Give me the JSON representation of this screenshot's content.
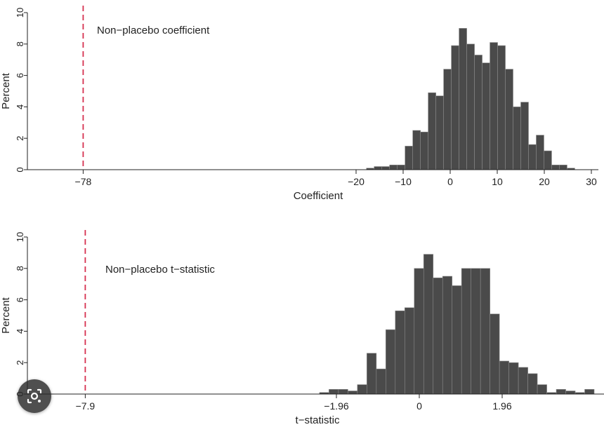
{
  "colors": {
    "bar": "#4a4a4a",
    "bar_stroke": "#8a8a8a",
    "reference_line": "#d6304f",
    "axis": "#222222"
  },
  "icons": {
    "lens_button": "google-lens-icon"
  },
  "chart_data": [
    {
      "type": "bar",
      "subtype": "histogram",
      "title": "",
      "xlabel": "Coefficient",
      "ylabel": "Percent",
      "xlim": [
        -85,
        31.5
      ],
      "ylim": [
        0,
        10
      ],
      "yticks": [
        "0",
        "2",
        "4",
        "6",
        "8",
        "10"
      ],
      "xticks": [
        {
          "value": -78,
          "label": "−78"
        },
        {
          "value": -20,
          "label": "−20"
        },
        {
          "value": -10,
          "label": "−10"
        },
        {
          "value": 0,
          "label": "0"
        },
        {
          "value": 10,
          "label": "10"
        },
        {
          "value": 20,
          "label": "20"
        },
        {
          "value": 30,
          "label": "30"
        }
      ],
      "reference_line": {
        "x": -78,
        "label": "Non−placebo coefficient",
        "style": "dashed"
      },
      "bins": {
        "start": -17.8,
        "width": 1.64,
        "values": [
          0.1,
          0.2,
          0.2,
          0.3,
          0.3,
          1.5,
          2.5,
          2.4,
          4.9,
          4.7,
          6.4,
          7.9,
          9.0,
          8.0,
          7.3,
          6.8,
          8.1,
          7.9,
          6.4,
          4.0,
          4.3,
          1.6,
          2.2,
          1.2,
          0.3,
          0.3,
          0.1
        ]
      }
    },
    {
      "type": "bar",
      "subtype": "histogram",
      "title": "",
      "xlabel": "t−statistic",
      "ylabel": "Percent",
      "xlim": [
        -9.9,
        4.5
      ],
      "ylim": [
        0,
        10
      ],
      "yticks": [
        "0",
        "2",
        "4",
        "6",
        "8",
        "10"
      ],
      "xticks": [
        {
          "value": -7.9,
          "label": "−7.9"
        },
        {
          "value": -1.96,
          "label": "−1.96"
        },
        {
          "value": 0,
          "label": "0"
        },
        {
          "value": 1.96,
          "label": "1.96"
        }
      ],
      "reference_line": {
        "x": -7.9,
        "label": "Non−placebo t−statistic",
        "style": "dashed"
      },
      "bins": {
        "start": -2.36,
        "width": 0.224,
        "values": [
          0.1,
          0.3,
          0.3,
          0.2,
          0.6,
          2.6,
          1.6,
          4.1,
          5.3,
          5.5,
          8.0,
          8.9,
          7.4,
          7.5,
          6.9,
          8.0,
          8.0,
          8.0,
          5.1,
          2.1,
          2.0,
          1.7,
          1.3,
          0.6,
          0.1,
          0.3,
          0.2,
          0.1,
          0.3
        ]
      }
    }
  ]
}
